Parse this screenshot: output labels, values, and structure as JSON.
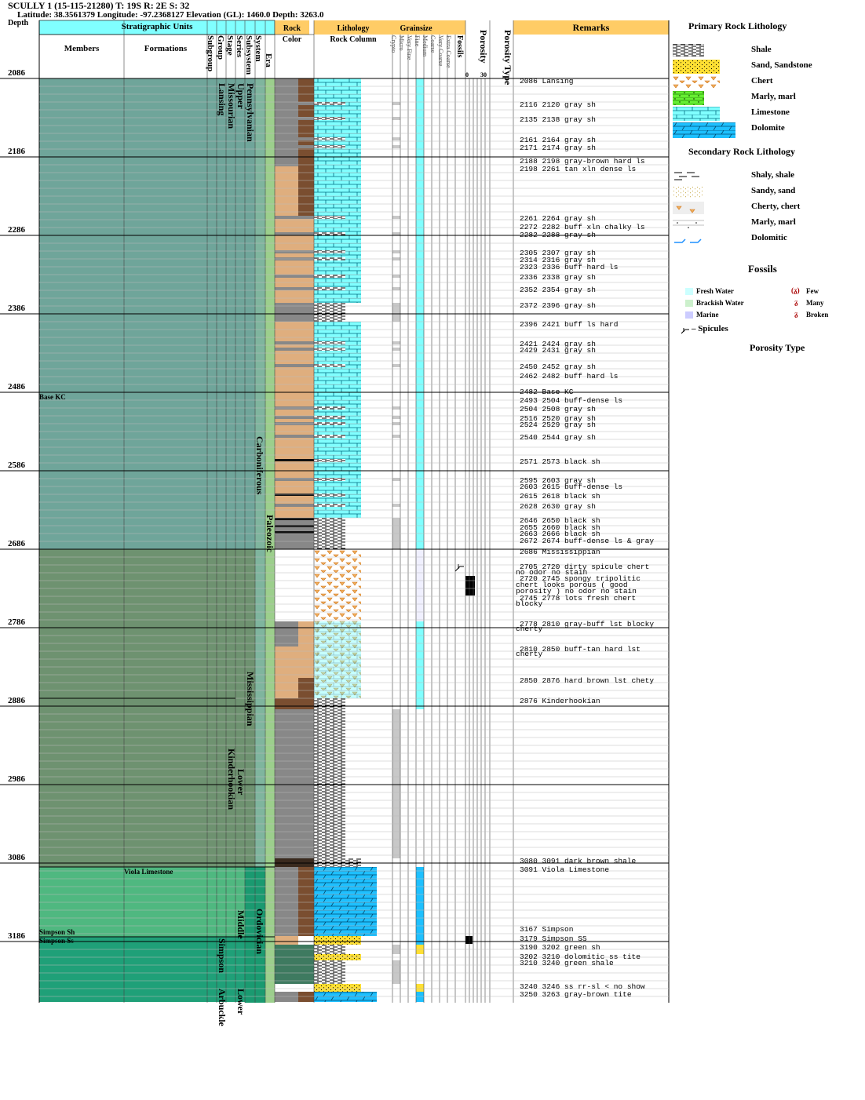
{
  "well": {
    "title": "SCULLY 1 (15-115-21280) T: 19S R: 2E S: 32",
    "location": "Latitude: 38.3561379 Longitude: -97.2368127 Elevation (GL): 1460.0 Depth: 3263.0"
  },
  "columns": {
    "depth": "Depth",
    "strat_units": "Stratigraphic Units",
    "members": "Members",
    "formations": "Formations",
    "subgroup": "Subgroup",
    "group": "Group",
    "stage": "Stage",
    "series": "Series",
    "subsystem": "Subsystem",
    "system": "System",
    "era": "Era",
    "rock": "Rock",
    "color": "Color",
    "lithology": "Lithology",
    "rock_column": "Rock Column",
    "grainsize": "Grainsize",
    "grain_classes": [
      "Crypto",
      "Micro",
      "Very Fine",
      "Fine",
      "Medium",
      "Coarse",
      "Very Coarse",
      "Extra Coarse"
    ],
    "fossils": "Fossils",
    "porosity": "Porosity",
    "porosity_scale_min": "0",
    "porosity_scale_max": "30",
    "porosity_type": "Porosity Type",
    "remarks": "Remarks"
  },
  "depth_ticks": [
    "2086",
    "2186",
    "2286",
    "2386",
    "2486",
    "2586",
    "2686",
    "2786",
    "2886",
    "2986",
    "3086",
    "3186"
  ],
  "strat_labels": {
    "members_base_kc": "Base KC",
    "formation_viola": "Viola Limestone",
    "members_simpson_sh": "Simpson Sh",
    "members_simpson_ss": "Simpson Ss",
    "lansing_group": "Lansing",
    "missourian_stage": "Missourian",
    "upper_series": "Upper",
    "pennsylvanian_subsystem": "Pennsylvanian",
    "carboniferous_system": "Carboniferous",
    "paleozoic_era": "Paleozoic",
    "mississippian_subsystem": "Mississippian",
    "kinderhookian_stage": "Kinderhookian",
    "lower_series": "Lower",
    "ordovician_system": "Ordovician",
    "middle_series": "Middle",
    "simpson_group": "Simpson",
    "lower_series_2": "Lower",
    "arbuckle_group": "Arbuckle"
  },
  "remarks": [
    "2086 Lansing",
    "2116 2120 gray sh",
    "2135 2138 gray sh",
    "2161 2164 gray sh",
    "2171 2174 gray sh",
    "2188 2198 gray-brown hard ls",
    "2198 2261 tan xln dense ls",
    "2261 2264 gray sh",
    "2272 2282 buff xln chalky ls",
    "2282 2288 gray sh",
    "2305 2307 gray sh",
    "2314 2316 gray sh",
    "2323 2336 buff hard ls",
    "2336 2338 gray sh",
    "2352 2354 gray sh",
    "2372 2396 gray sh",
    "2396 2421 buff ls hard",
    "2421 2424 gray sh",
    "2429 2431 gray sh",
    "2450 2452 gray sh",
    "2462 2482 buff hard ls",
    "2482 Base KC",
    "2493 2504 buff-dense ls",
    "2504 2508 gray sh",
    "2516 2520 gray sh",
    "2524 2529 gray sh",
    "2540 2544 gray sh",
    "2571 2573 black sh",
    "2595 2603 gray sh",
    "2603 2615 buff-dense ls",
    "2615 2618 black sh",
    "2628 2630 gray sh",
    "2646 2650 black sh",
    "2655 2660 black sh",
    "2663 2666 black sh",
    "2672 2674 buff-dense ls & gray",
    "2686 Mississippian",
    "2705 2720 dirty spicule chert",
    "no odor no stain",
    "2720 2745 spongy tripolitic",
    "chert looks porous ( good",
    "porosity ) no odor no stain",
    "2745 2778 lots fresh chert",
    "blocky",
    "2778 2810 gray-buff lst blocky",
    "cherty",
    "2810 2850 buff-tan hard lst",
    "cherty",
    "2850 2876 hard brown lst chety",
    "2876 Kinderhookian",
    "3080 3091 dark brown shale",
    "3091 Viola Limestone",
    "3167 Simpson",
    "3179 Simpson SS",
    "3190 3202 green sh",
    "3202 3210 dolomitic ss tite",
    "3210 3240 green shale",
    "3240 3246 ss rr-sl < no show",
    "3250 3263 gray-brown tite"
  ],
  "legend": {
    "primary_title": "Primary Rock Lithology",
    "primary": [
      "Shale",
      "Sand, Sandstone",
      "Chert",
      "Marly, marl",
      "Limestone",
      "Dolomite"
    ],
    "secondary_title": "Secondary Rock Lithology",
    "secondary": [
      "Shaly, shale",
      "Sandy, sand",
      "Cherty, chert",
      "Marly, marl",
      "Dolomitic"
    ],
    "fossils_title": "Fossils",
    "fossil_env": [
      "Fresh Water",
      "Brackish Water",
      "Marine"
    ],
    "fossil_abundance": [
      "Few",
      "Many",
      "Broken"
    ],
    "spicules": "– Spicules",
    "porosity_title": "Porosity Type"
  },
  "colors": {
    "kc_zone": "#6fa59a",
    "miss_zone": "#6e9270",
    "ord_zone": "#4fb880",
    "arb_zone": "#1fa078",
    "limestone": "#80ffff",
    "dolomite": "#1ec0ff",
    "sand": "#ffe033",
    "chert_tri": "#e89030",
    "marl": "#66ee33",
    "gray_rock": "#888888",
    "buff_rock": "#dfae7e",
    "brown_rock": "#7a4e30",
    "green_rock": "#3e7a60"
  },
  "icons": [
    "shale-pattern",
    "sand-pattern",
    "chert-pattern",
    "marl-pattern",
    "limestone-pattern",
    "dolomite-pattern",
    "spicule-icon"
  ]
}
